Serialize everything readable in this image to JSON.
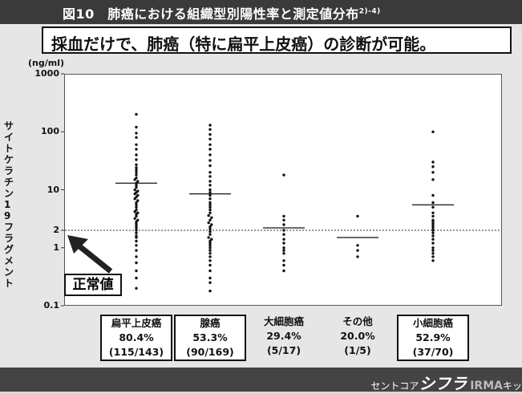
{
  "title": "図10　肺癌における組織型別陽性率と測定値分布",
  "title_ref": "2)-4)",
  "headline": "採血だけで、肺癌（特に扁平上皮癌）の診断が可能。",
  "footer": {
    "pre": "セントコア",
    "brand": "シフラ",
    "irma": "IRMA",
    "post": "キッ"
  },
  "normal_label": "正常値",
  "chart_data": {
    "type": "scatter",
    "unit": "(ng/ml)",
    "ylabel": "サイトケラチン19フラグメント",
    "yscale": "log",
    "ylim": [
      0.1,
      1000
    ],
    "yticks": [
      {
        "v": 1000,
        "label": "1000"
      },
      {
        "v": 100,
        "label": "100"
      },
      {
        "v": 10,
        "label": "10"
      },
      {
        "v": 2,
        "label": "2"
      },
      {
        "v": 1,
        "label": "1"
      },
      {
        "v": 0.1,
        "label": "0.1"
      }
    ],
    "cutoff": 2,
    "categories": [
      {
        "name": "扁平上皮癌",
        "rate": "80.4%",
        "count": "(115/143)",
        "boxed": true,
        "median": 13,
        "values": [
          200,
          120,
          95,
          80,
          60,
          50,
          40,
          33,
          27,
          24,
          22,
          20,
          18,
          16,
          15,
          14,
          13,
          12,
          11,
          10,
          9.5,
          9,
          8.5,
          8,
          7.5,
          7,
          6.5,
          6,
          5.5,
          5,
          4.5,
          4.2,
          4,
          3.8,
          3.5,
          3.2,
          3,
          2.8,
          2.6,
          2.4,
          2.2,
          2,
          1.8,
          1.6,
          1.5,
          1.3,
          1.1,
          0.9,
          0.7,
          0.55,
          0.4,
          0.3,
          0.2
        ]
      },
      {
        "name": "腺癌",
        "rate": "53.3%",
        "count": "(90/169)",
        "boxed": true,
        "median": 8.5,
        "values": [
          130,
          110,
          90,
          75,
          60,
          50,
          40,
          32,
          26,
          20,
          17,
          14,
          12,
          10,
          9,
          8,
          7,
          6,
          5.5,
          5,
          4.5,
          4,
          3.6,
          3.3,
          3,
          2.7,
          2.5,
          2.3,
          2.1,
          1.9,
          1.7,
          1.5,
          1.4,
          1.3,
          1.2,
          1.1,
          1,
          0.9,
          0.8,
          0.7,
          0.6,
          0.5,
          0.4,
          0.3,
          0.25,
          0.18
        ]
      },
      {
        "name": "大細胞癌",
        "rate": "29.4%",
        "count": "(5/17)",
        "boxed": false,
        "median": 2.2,
        "values": [
          18,
          3.5,
          3,
          2.5,
          2,
          1.7,
          1.4,
          1.2,
          1,
          0.9,
          0.8,
          0.6,
          0.5,
          0.4
        ]
      },
      {
        "name": "その他",
        "rate": "20.0%",
        "count": "(1/5)",
        "boxed": false,
        "median": 1.5,
        "values": [
          3.5,
          1.1,
          0.9,
          0.7
        ]
      },
      {
        "name": "小細胞癌",
        "rate": "52.9%",
        "count": "(37/70)",
        "boxed": true,
        "median": 5.5,
        "values": [
          100,
          30,
          25,
          20,
          15,
          8,
          6,
          5,
          4,
          3.5,
          3,
          2.8,
          2.6,
          2.4,
          2.2,
          2,
          1.8,
          1.6,
          1.4,
          1.2,
          1,
          0.9,
          0.8,
          0.7,
          0.6
        ]
      }
    ]
  }
}
